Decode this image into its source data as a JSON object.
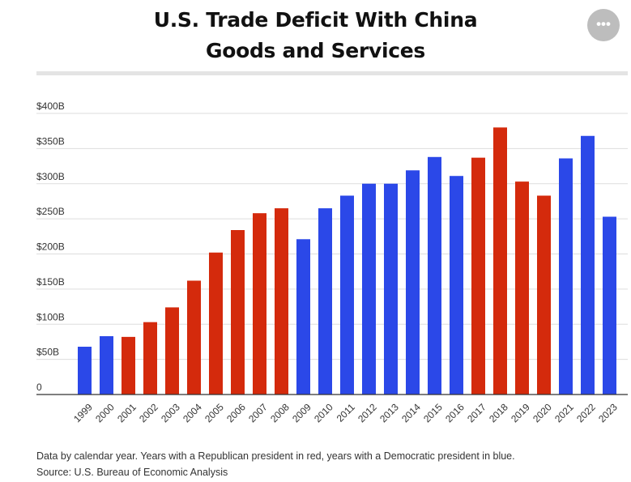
{
  "header": {
    "title_line1": "U.S. Trade Deficit With China",
    "title_line2": "Goods and Services",
    "menu_label": "•••"
  },
  "colors": {
    "republican": "#d42a0c",
    "democratic": "#2b48e8",
    "grid": "#dddddd",
    "axis": "#333333"
  },
  "chart_data": {
    "type": "bar",
    "title": "U.S. Trade Deficit With China — Goods and Services",
    "xlabel": "",
    "ylabel": "",
    "ylim": [
      0,
      400
    ],
    "yticks": [
      0,
      50,
      100,
      150,
      200,
      250,
      300,
      350,
      400
    ],
    "ytick_labels": [
      "0",
      "$50B",
      "$100B",
      "$150B",
      "$200B",
      "$250B",
      "$300B",
      "$350B",
      "$400B"
    ],
    "categories": [
      "1999",
      "2000",
      "2001",
      "2002",
      "2003",
      "2004",
      "2005",
      "2006",
      "2007",
      "2008",
      "2009",
      "2010",
      "2011",
      "2012",
      "2013",
      "2014",
      "2015",
      "2016",
      "2017",
      "2018",
      "2019",
      "2020",
      "2021",
      "2022",
      "2023"
    ],
    "values": [
      68,
      83,
      82,
      103,
      124,
      162,
      202,
      234,
      258,
      265,
      221,
      265,
      283,
      300,
      300,
      319,
      338,
      311,
      337,
      380,
      303,
      283,
      336,
      368,
      253
    ],
    "party": [
      "D",
      "D",
      "R",
      "R",
      "R",
      "R",
      "R",
      "R",
      "R",
      "R",
      "D",
      "D",
      "D",
      "D",
      "D",
      "D",
      "D",
      "D",
      "R",
      "R",
      "R",
      "R",
      "D",
      "D",
      "D"
    ],
    "grid": true
  },
  "footer": {
    "note": "Data by calendar year. Years with a Republican president in red, years with a Democratic president in blue.",
    "source": "Source: U.S. Bureau of Economic Analysis"
  }
}
